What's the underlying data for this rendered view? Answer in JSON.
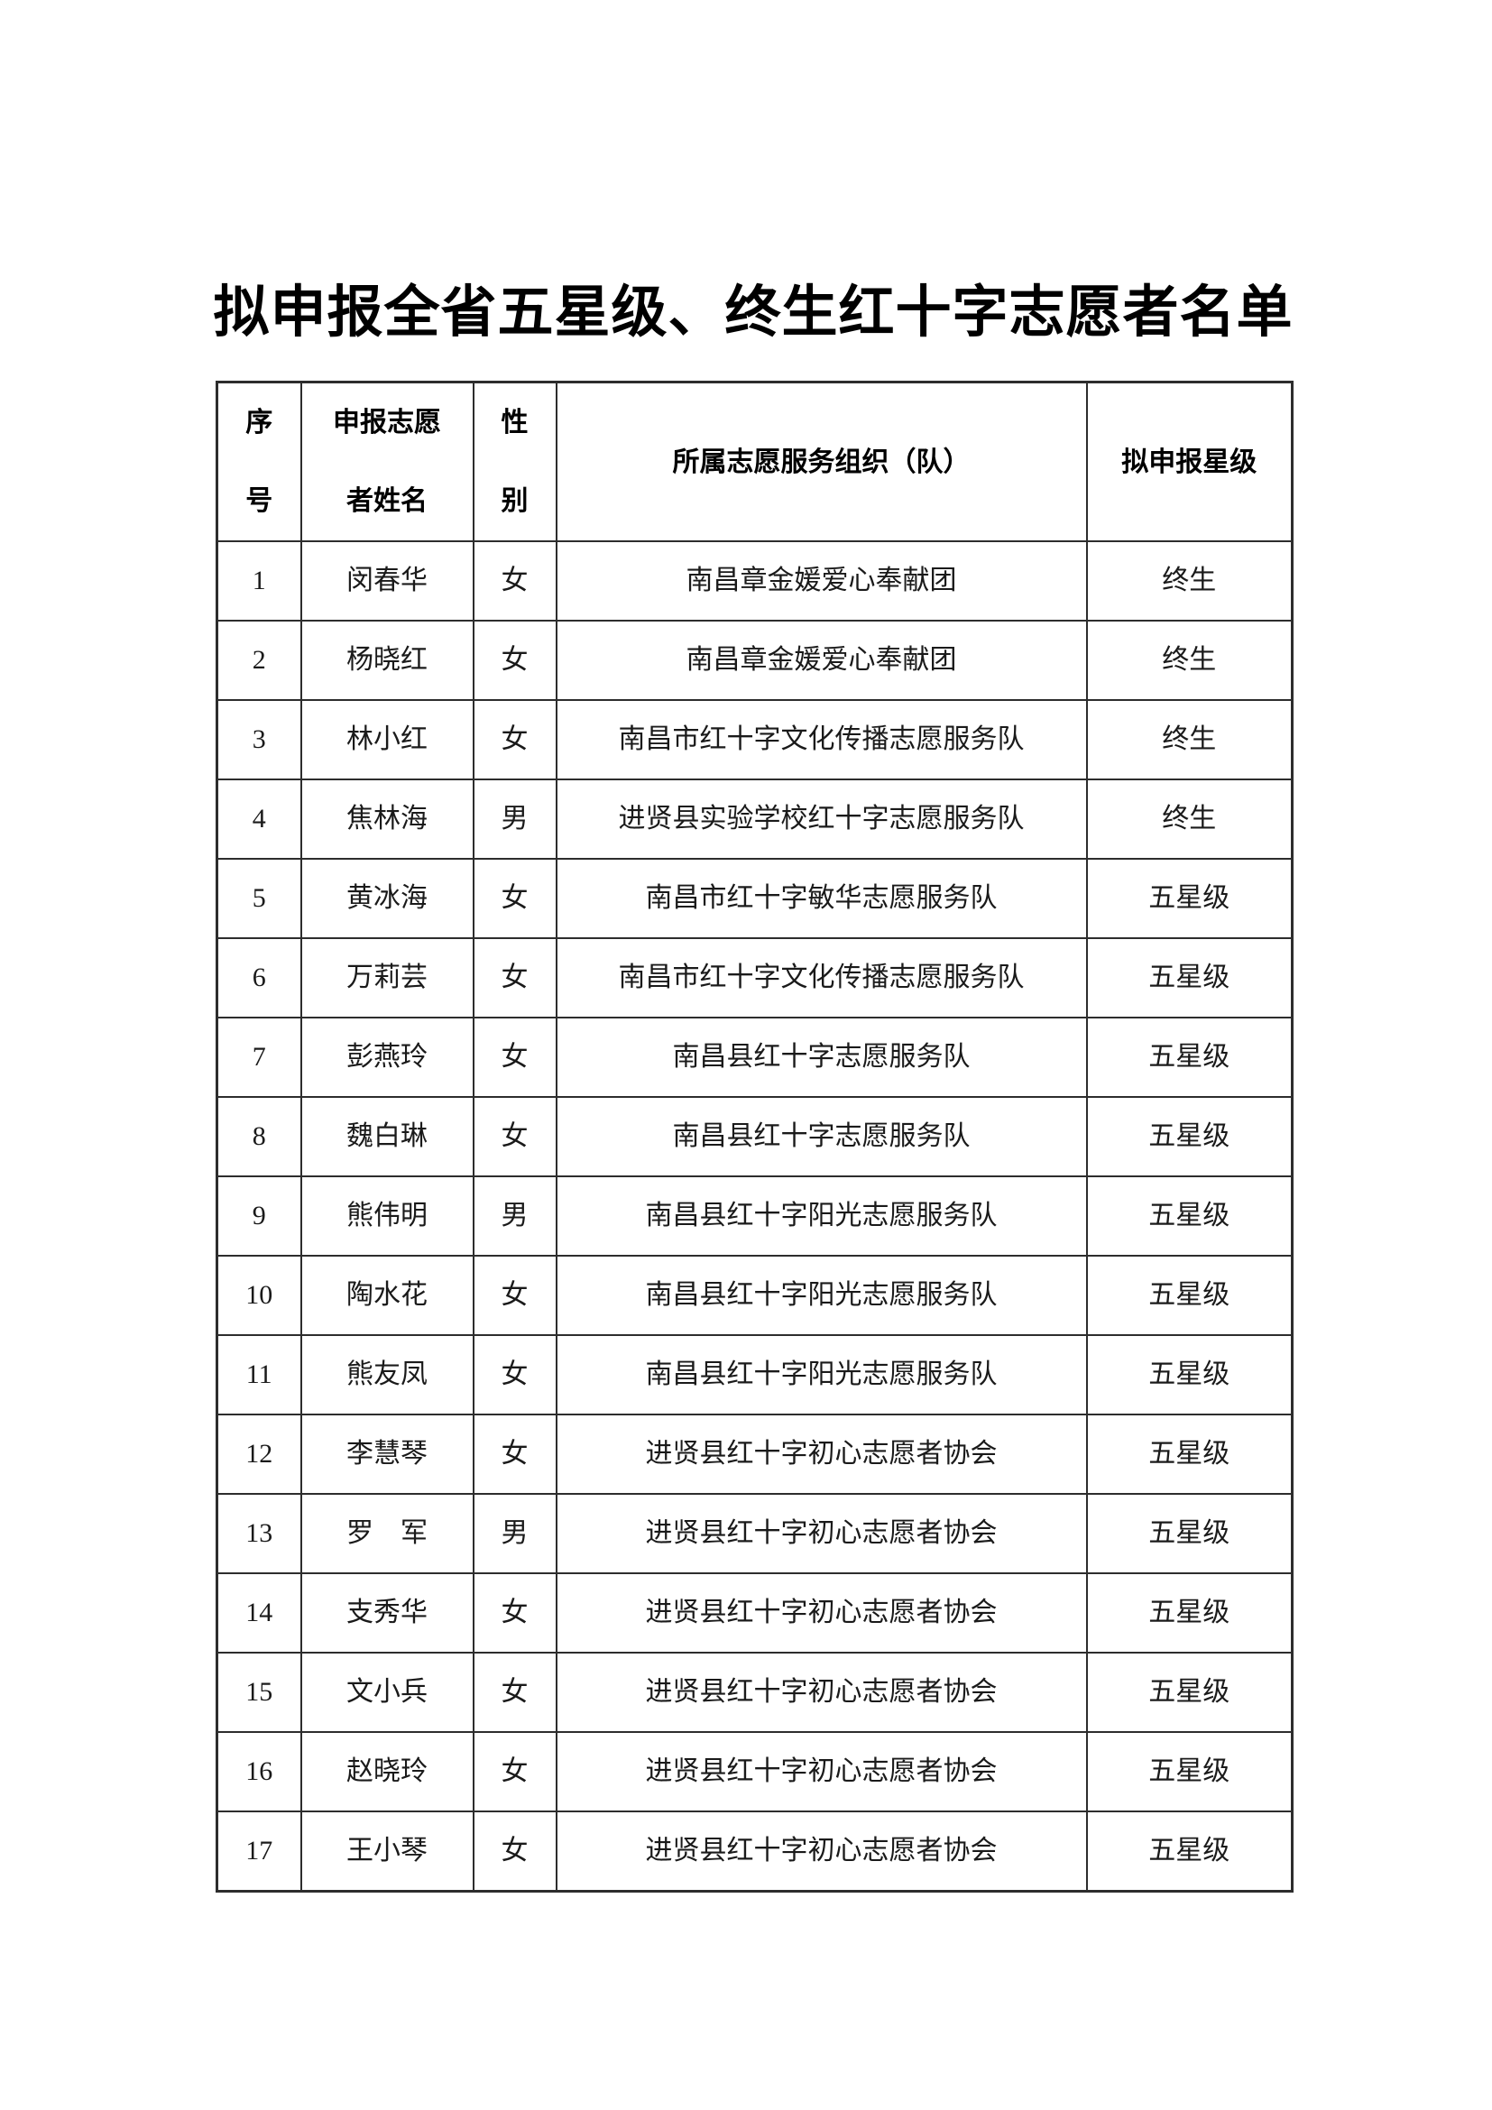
{
  "page": {
    "title": "拟申报全省五星级、终生红十字志愿者名单"
  },
  "table": {
    "columns": [
      "序\n号",
      "申报志愿\n者姓名",
      "性\n别",
      "所属志愿服务组织（队）",
      "拟申报星级"
    ],
    "rows": [
      {
        "no": "1",
        "name": "闵春华",
        "gender": "女",
        "org": "南昌章金媛爱心奉献团",
        "level": "终生"
      },
      {
        "no": "2",
        "name": "杨晓红",
        "gender": "女",
        "org": "南昌章金媛爱心奉献团",
        "level": "终生"
      },
      {
        "no": "3",
        "name": "林小红",
        "gender": "女",
        "org": "南昌市红十字文化传播志愿服务队",
        "level": "终生"
      },
      {
        "no": "4",
        "name": "焦林海",
        "gender": "男",
        "org": "进贤县实验学校红十字志愿服务队",
        "level": "终生"
      },
      {
        "no": "5",
        "name": "黄冰海",
        "gender": "女",
        "org": "南昌市红十字敏华志愿服务队",
        "level": "五星级"
      },
      {
        "no": "6",
        "name": "万莉芸",
        "gender": "女",
        "org": "南昌市红十字文化传播志愿服务队",
        "level": "五星级"
      },
      {
        "no": "7",
        "name": "彭燕玲",
        "gender": "女",
        "org": "南昌县红十字志愿服务队",
        "level": "五星级"
      },
      {
        "no": "8",
        "name": "魏白琳",
        "gender": "女",
        "org": "南昌县红十字志愿服务队",
        "level": "五星级"
      },
      {
        "no": "9",
        "name": "熊伟明",
        "gender": "男",
        "org": "南昌县红十字阳光志愿服务队",
        "level": "五星级"
      },
      {
        "no": "10",
        "name": "陶水花",
        "gender": "女",
        "org": "南昌县红十字阳光志愿服务队",
        "level": "五星级"
      },
      {
        "no": "11",
        "name": "熊友凤",
        "gender": "女",
        "org": "南昌县红十字阳光志愿服务队",
        "level": "五星级"
      },
      {
        "no": "12",
        "name": "李慧琴",
        "gender": "女",
        "org": "进贤县红十字初心志愿者协会",
        "level": "五星级"
      },
      {
        "no": "13",
        "name": "罗　军",
        "gender": "男",
        "org": "进贤县红十字初心志愿者协会",
        "level": "五星级"
      },
      {
        "no": "14",
        "name": "支秀华",
        "gender": "女",
        "org": "进贤县红十字初心志愿者协会",
        "level": "五星级"
      },
      {
        "no": "15",
        "name": "文小兵",
        "gender": "女",
        "org": "进贤县红十字初心志愿者协会",
        "level": "五星级"
      },
      {
        "no": "16",
        "name": "赵晓玲",
        "gender": "女",
        "org": "进贤县红十字初心志愿者协会",
        "level": "五星级"
      },
      {
        "no": "17",
        "name": "王小琴",
        "gender": "女",
        "org": "进贤县红十字初心志愿者协会",
        "level": "五星级"
      }
    ]
  }
}
